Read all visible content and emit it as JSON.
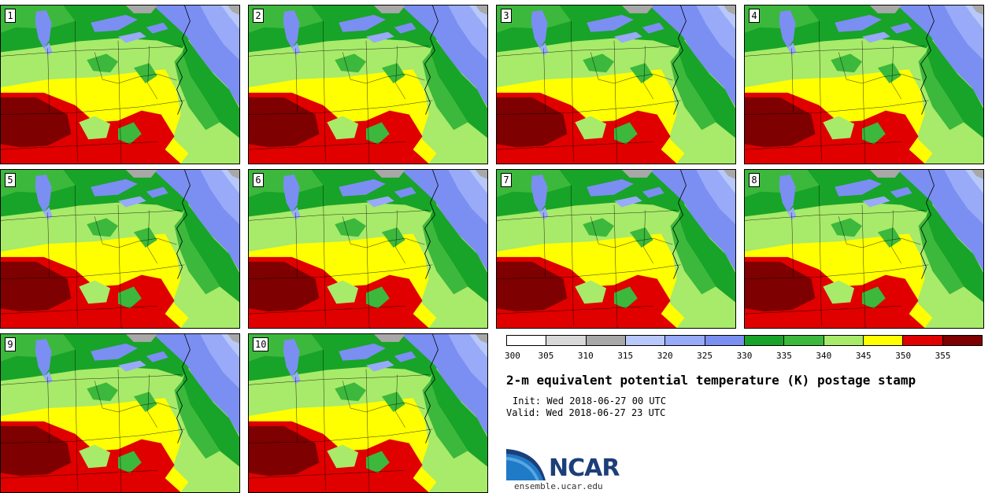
{
  "panels": [
    {
      "label": "1"
    },
    {
      "label": "2"
    },
    {
      "label": "3"
    },
    {
      "label": "4"
    },
    {
      "label": "5"
    },
    {
      "label": "6"
    },
    {
      "label": "7"
    },
    {
      "label": "8"
    },
    {
      "label": "9"
    },
    {
      "label": "10"
    }
  ],
  "colorbar": {
    "colors": [
      "#ffffff",
      "#d8d8d8",
      "#a8a8a8",
      "#b8c8fa",
      "#98aaf8",
      "#7b8ef2",
      "#18a428",
      "#3cb83c",
      "#a8ea6a",
      "#ffff00",
      "#e00000",
      "#7e0000"
    ],
    "ticks": [
      "300",
      "305",
      "310",
      "315",
      "320",
      "325",
      "330",
      "335",
      "340",
      "345",
      "350",
      "355"
    ]
  },
  "title": "2-m equivalent potential temperature (K) postage stamp",
  "init": "Init: Wed 2018-06-27 00 UTC",
  "valid": "Valid: Wed 2018-06-27 23 UTC",
  "logo": {
    "word": "NCAR",
    "site": "ensemble.ucar.edu",
    "color": "#1c3f7a"
  }
}
